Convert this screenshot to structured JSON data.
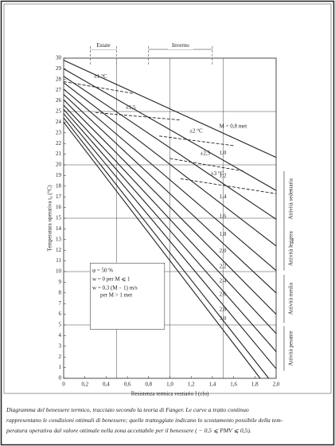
{
  "chart_data": {
    "type": "line",
    "x_label": "Resistenza termica vestiario I (clo)",
    "y_label": "Temperatura operativa t₀ (°C)",
    "xlim": [
      0,
      2.0
    ],
    "ylim": [
      0,
      30
    ],
    "xticks": [
      0,
      {
        "value": 0.2,
        "label": "0,2"
      },
      {
        "value": 0.4,
        "label": "0,4"
      },
      {
        "value": 0.6,
        "label": "0,6"
      },
      {
        "value": 0.8,
        "label": "0,8"
      },
      {
        "value": 1.0,
        "label": "1,0"
      },
      {
        "value": 1.2,
        "label": "1,2"
      },
      {
        "value": 1.4,
        "label": "1,4"
      },
      {
        "value": 1.6,
        "label": "1,6"
      },
      {
        "value": 1.8,
        "label": "1,8"
      },
      {
        "value": 2.0,
        "label": "2,0"
      }
    ],
    "yticks": [
      0,
      1,
      2,
      3,
      4,
      5,
      6,
      7,
      8,
      9,
      10,
      11,
      12,
      13,
      14,
      15,
      16,
      17,
      18,
      19,
      20,
      21,
      22,
      23,
      24,
      25,
      26,
      27,
      28,
      29,
      30
    ],
    "xgrid": [
      0.5,
      1.0,
      1.5
    ],
    "grid": true,
    "color": "#222222",
    "series": [
      {
        "name": "M = 0,8 met",
        "x": [
          0,
          2.0
        ],
        "values": [
          29.8,
          20.7
        ]
      },
      {
        "name": "1,0",
        "x": [
          0,
          2.0
        ],
        "values": [
          29.0,
          17.6
        ]
      },
      {
        "name": "1,2",
        "x": [
          0,
          2.0
        ],
        "values": [
          28.3,
          14.9
        ]
      },
      {
        "name": "1,4",
        "x": [
          0,
          2.0
        ],
        "values": [
          27.7,
          12.4
        ]
      },
      {
        "name": "1,6",
        "x": [
          0,
          2.0
        ],
        "values": [
          27.1,
          10.1
        ]
      },
      {
        "name": "1,8",
        "x": [
          0,
          2.0
        ],
        "values": [
          26.6,
          8.0
        ]
      },
      {
        "name": "2,0",
        "x": [
          0,
          2.0
        ],
        "values": [
          26.1,
          6.0
        ]
      },
      {
        "name": "2,2",
        "x": [
          0,
          2.0
        ],
        "values": [
          25.6,
          4.2
        ]
      },
      {
        "name": "2,4",
        "x": [
          0,
          2.0
        ],
        "values": [
          25.2,
          2.5
        ]
      },
      {
        "name": "2,6",
        "x": [
          0,
          2.0
        ],
        "values": [
          24.8,
          0.9
        ]
      },
      {
        "name": "2,8",
        "x": [
          0,
          1.93
        ],
        "values": [
          24.4,
          0
        ]
      },
      {
        "name": "3,0",
        "x": [
          0,
          1.85
        ],
        "values": [
          24.0,
          0
        ]
      }
    ],
    "dashed_series": [
      {
        "name": "±1 °C",
        "x": [
          0,
          0.65
        ],
        "values": [
          27.8,
          26.7
        ]
      },
      {
        "name": "±1,5",
        "x": [
          0.3,
          1.1
        ],
        "values": [
          24.9,
          24.2
        ]
      },
      {
        "name": "±2 °C",
        "x": [
          0.9,
          1.6
        ],
        "values": [
          22.7,
          21.8
        ]
      },
      {
        "name": "±2,5",
        "x": [
          1.0,
          1.7
        ],
        "values": [
          20.6,
          19.4
        ]
      },
      {
        "name": "±3 °C",
        "x": [
          1.1,
          2.0
        ],
        "values": [
          18.7,
          17.3
        ]
      }
    ],
    "season_bands": [
      {
        "label": "Estate",
        "range": [
          0.25,
          0.5
        ]
      },
      {
        "label": "Inverno",
        "range": [
          0.8,
          1.4
        ]
      }
    ],
    "activity_bands": [
      {
        "label": "Attività sedentaria",
        "range": [
          14.2,
          19.4
        ]
      },
      {
        "label": "Attività leggera",
        "range": [
          10.1,
          14.2
        ]
      },
      {
        "label": "Attività media",
        "range": [
          5.2,
          9.7
        ]
      },
      {
        "label": "Attività pesante",
        "range": [
          0.7,
          4.9
        ]
      }
    ],
    "info_box": [
      "φ = 50 %",
      "w = 0 per M ⩽ 1",
      "w = 0,3 (M − 1) m/s",
      "per M > 1 met"
    ]
  },
  "caption": [
    "Diagramma del benessere termico, tracciato secondo la teoria di Fanger. Le curve a tratto continuo",
    "rappresentano le condizioni ottimali di benessere; quelle tratteggiate indicano lo scostamento possibile della tem-",
    "peratura operativa dal valore ottimale nella zona accettabile per il benessere ( − 0,5 ⩽ PMV ⩽ 0,5)."
  ]
}
